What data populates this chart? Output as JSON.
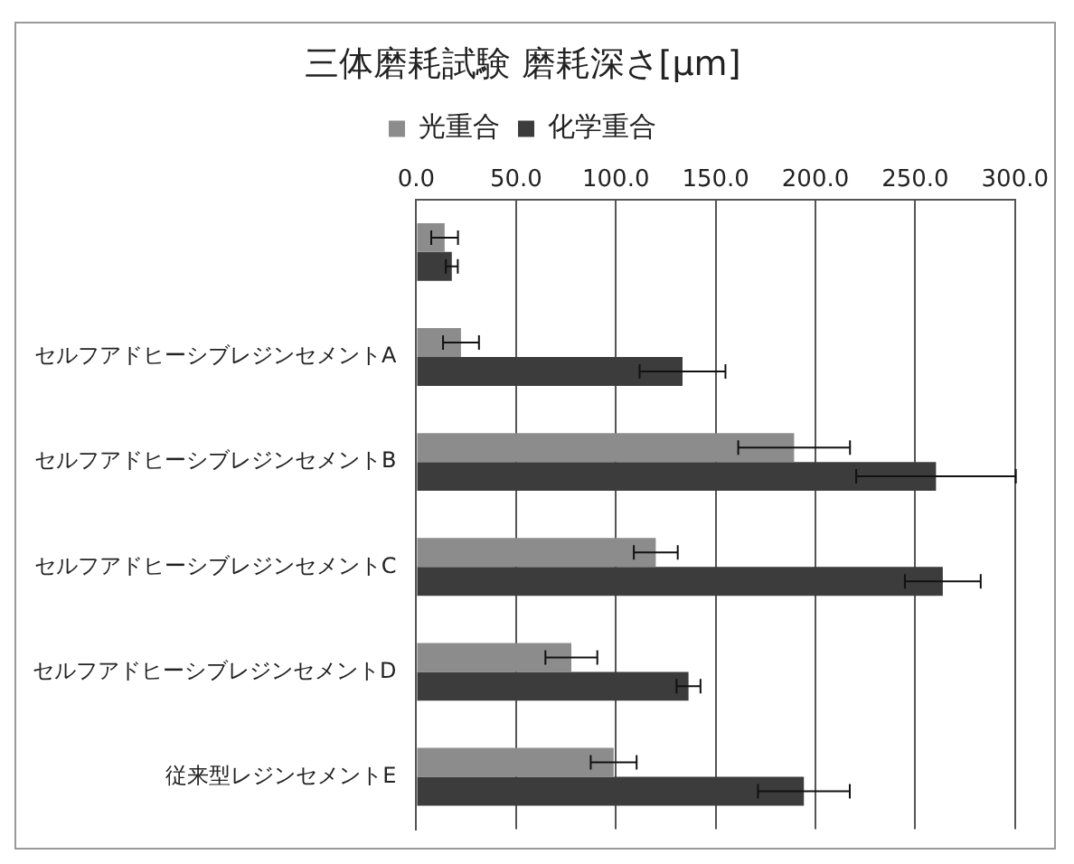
{
  "chart_data": {
    "type": "bar",
    "orientation": "horizontal",
    "title": "三体磨耗試験 磨耗深さ[μm]",
    "categories": [
      null,
      "セルフアドヒーシブレジンセメントA",
      "セルフアドヒーシブレジンセメントB",
      "セルフアドヒーシブレジンセメントC",
      "セルフアドヒーシブレジンセメントD",
      "従来型レジンセメントE"
    ],
    "series": [
      {
        "name": "光重合",
        "color": "#8c8c8c",
        "values": [
          14.2,
          22.4,
          189.3,
          120,
          77.7,
          98.9
        ],
        "errors": [
          6.7,
          9,
          28,
          11,
          13,
          11.5
        ]
      },
      {
        "name": "化学重合",
        "color": "#3c3c3c",
        "values": [
          17.8,
          133.4,
          260.4,
          263.8,
          136.4,
          194.2
        ],
        "errors": [
          3,
          21.5,
          40,
          19,
          6,
          23
        ]
      }
    ],
    "xlim": [
      0,
      300
    ],
    "xticks": [
      {
        "value": 0,
        "label": "0.0"
      },
      {
        "value": 50,
        "label": "50.0"
      },
      {
        "value": 100,
        "label": "100.0"
      },
      {
        "value": 150,
        "label": "150.0"
      },
      {
        "value": 200,
        "label": "200.0"
      },
      {
        "value": 250,
        "label": "250.0"
      },
      {
        "value": 300,
        "label": "300.0"
      }
    ],
    "grid": "x",
    "legend": "top"
  }
}
